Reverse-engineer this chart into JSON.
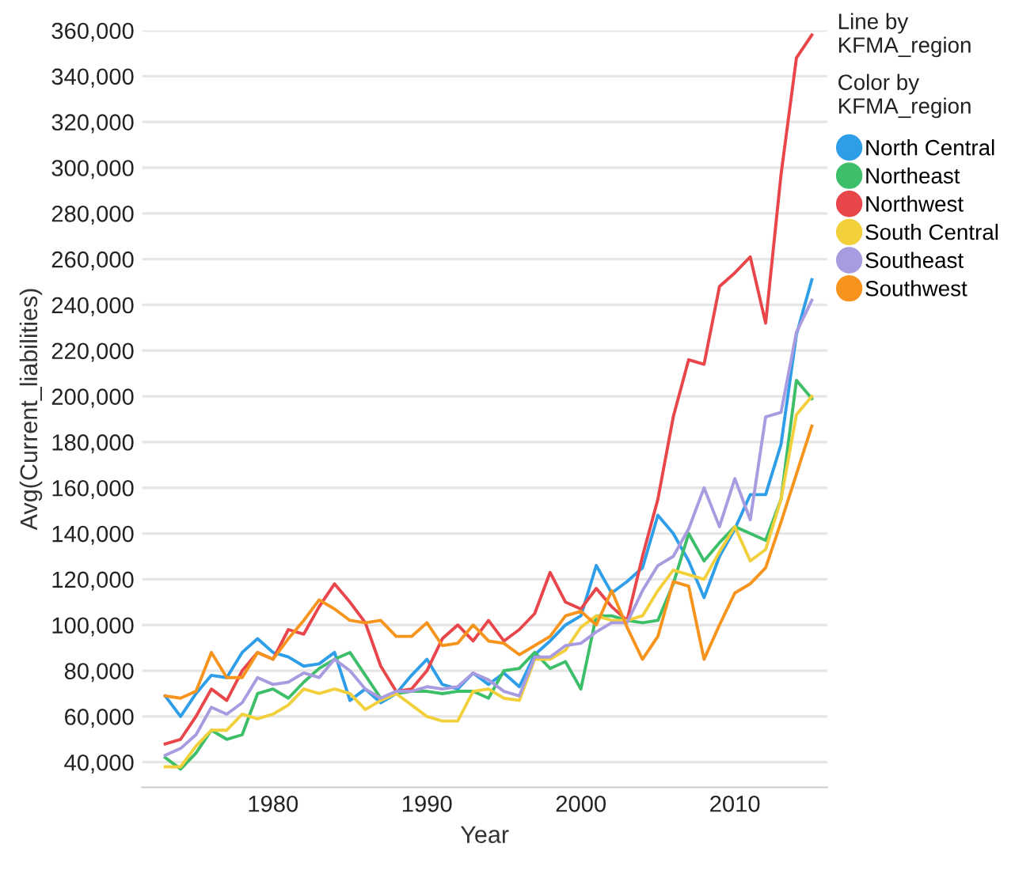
{
  "chart_data": {
    "type": "line",
    "xlabel": "Year",
    "ylabel": "Avg(Current_liabilities)",
    "legend_title": "Line by KFMA_region",
    "annotations": [
      "Color by KFMA_region"
    ],
    "x": [
      1973,
      1974,
      1975,
      1976,
      1977,
      1978,
      1979,
      1980,
      1981,
      1982,
      1983,
      1984,
      1985,
      1986,
      1987,
      1988,
      1989,
      1990,
      1991,
      1992,
      1993,
      1994,
      1995,
      1996,
      1997,
      1998,
      1999,
      2000,
      2001,
      2002,
      2003,
      2004,
      2005,
      2006,
      2007,
      2008,
      2009,
      2010,
      2011,
      2012,
      2013,
      2014,
      2015
    ],
    "xlim": [
      1971.5,
      2016
    ],
    "xticks": [
      1980,
      1990,
      2000,
      2010
    ],
    "ylim": [
      29000,
      360000
    ],
    "yticks": [
      {
        "value": 40000,
        "label": "40,000"
      },
      {
        "value": 60000,
        "label": "60,000"
      },
      {
        "value": 80000,
        "label": "80,000"
      },
      {
        "value": 100000,
        "label": "100,000"
      },
      {
        "value": 120000,
        "label": "120,000"
      },
      {
        "value": 140000,
        "label": "140,000"
      },
      {
        "value": 160000,
        "label": "160,000"
      },
      {
        "value": 180000,
        "label": "180,000"
      },
      {
        "value": 200000,
        "label": "200,000"
      },
      {
        "value": 220000,
        "label": "220,000"
      },
      {
        "value": 240000,
        "label": "240,000"
      },
      {
        "value": 260000,
        "label": "260,000"
      },
      {
        "value": 280000,
        "label": "280,000"
      },
      {
        "value": 300000,
        "label": "300,000"
      },
      {
        "value": 320000,
        "label": "320,000"
      },
      {
        "value": 340000,
        "label": "340,000"
      },
      {
        "value": 360000,
        "label": "360,000"
      }
    ],
    "grid": "y",
    "legend": "right",
    "marker": "none",
    "line_style": "solid",
    "series": [
      {
        "name": "North Central",
        "color": "#2e9ee8",
        "values": [
          69000,
          60000,
          70000,
          78000,
          77000,
          88000,
          94000,
          88000,
          86000,
          82000,
          83000,
          88000,
          67000,
          72000,
          66000,
          70000,
          78000,
          85000,
          74000,
          72000,
          79000,
          74000,
          79000,
          73000,
          87000,
          93000,
          100000,
          104000,
          126000,
          114000,
          119000,
          125000,
          148000,
          140000,
          128000,
          112000,
          130000,
          142000,
          157000,
          157000,
          179000,
          227000,
          251000
        ]
      },
      {
        "name": "Northeast",
        "color": "#3dbf6a",
        "values": [
          42000,
          37000,
          44000,
          54000,
          50000,
          52000,
          70000,
          72000,
          68000,
          75000,
          81000,
          85000,
          88000,
          78000,
          68000,
          70000,
          71000,
          71000,
          70000,
          71000,
          71000,
          68000,
          80000,
          81000,
          88000,
          81000,
          84000,
          72000,
          104000,
          104000,
          102000,
          101000,
          102000,
          118000,
          140000,
          128000,
          136000,
          143000,
          140000,
          137000,
          155000,
          207000,
          199000
        ]
      },
      {
        "name": "Northwest",
        "color": "#e8464a",
        "values": [
          48000,
          50000,
          60000,
          72000,
          67000,
          80000,
          88000,
          85000,
          98000,
          96000,
          108000,
          118000,
          110000,
          101000,
          82000,
          71000,
          72000,
          80000,
          94000,
          100000,
          93000,
          102000,
          93000,
          98000,
          105000,
          123000,
          110000,
          107000,
          116000,
          108000,
          102000,
          130000,
          155000,
          191000,
          216000,
          214000,
          248000,
          254000,
          261000,
          232000,
          297000,
          348000,
          358000
        ]
      },
      {
        "name": "South Central",
        "color": "#f2d03b",
        "values": [
          38000,
          38000,
          47000,
          54000,
          54000,
          61000,
          59000,
          61000,
          65000,
          72000,
          70000,
          72000,
          70000,
          63000,
          67000,
          70000,
          65000,
          60000,
          58000,
          58000,
          71000,
          72000,
          68000,
          67000,
          85000,
          85000,
          89000,
          99000,
          104000,
          102000,
          102000,
          104000,
          115000,
          124000,
          122000,
          120000,
          132000,
          143000,
          128000,
          133000,
          155000,
          192000,
          200000
        ]
      },
      {
        "name": "Southeast",
        "color": "#a99be0",
        "values": [
          43000,
          46000,
          52000,
          64000,
          61000,
          66000,
          77000,
          74000,
          75000,
          79000,
          77000,
          85000,
          80000,
          72000,
          68000,
          71000,
          71000,
          73000,
          72000,
          73000,
          79000,
          76000,
          71000,
          69000,
          86000,
          86000,
          91000,
          92000,
          97000,
          101000,
          101000,
          115000,
          126000,
          130000,
          142000,
          160000,
          143000,
          164000,
          146000,
          191000,
          193000,
          228000,
          242000
        ]
      },
      {
        "name": "Southwest",
        "color": "#f7941d",
        "values": [
          69000,
          68000,
          71000,
          88000,
          77000,
          77000,
          88000,
          85000,
          94000,
          102000,
          111000,
          107000,
          102000,
          101000,
          102000,
          95000,
          95000,
          101000,
          91000,
          92000,
          100000,
          93000,
          92000,
          87000,
          91000,
          95000,
          104000,
          106000,
          100000,
          115000,
          99000,
          85000,
          95000,
          119000,
          117000,
          85000,
          100000,
          114000,
          118000,
          125000,
          145000,
          166000,
          187000
        ]
      }
    ]
  }
}
